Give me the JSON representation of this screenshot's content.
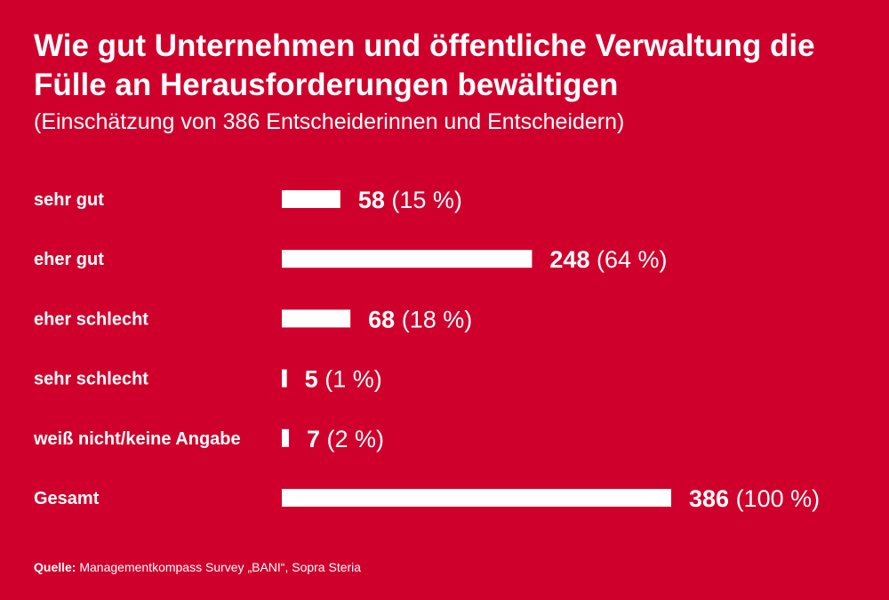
{
  "title": "Wie gut Unternehmen und öffentliche Verwaltung die Fülle an Herausforderungen bewältigen",
  "subtitle": "(Einschätzung von 386 Entscheiderinnen und Entscheidern)",
  "source": {
    "label": "Quelle:",
    "text": "Managementkompass Survey „BANI“, Sopra Steria"
  },
  "colors": {
    "background": "#d0002c",
    "bar": "#ffffff",
    "text": "#ffffff"
  },
  "chart_data": {
    "type": "bar",
    "orientation": "horizontal",
    "categories": [
      "sehr gut",
      "eher gut",
      "eher schlecht",
      "sehr schlecht",
      "weiß nicht/keine Angabe",
      "Gesamt"
    ],
    "values": [
      58,
      248,
      68,
      5,
      7,
      386
    ],
    "percent_labels": [
      "(15 %)",
      "(64 %)",
      "(18 %)",
      "(1 %)",
      "(2 %)",
      "(100 %)"
    ],
    "xlim": [
      0,
      386
    ],
    "grid": false,
    "legend": "none"
  }
}
